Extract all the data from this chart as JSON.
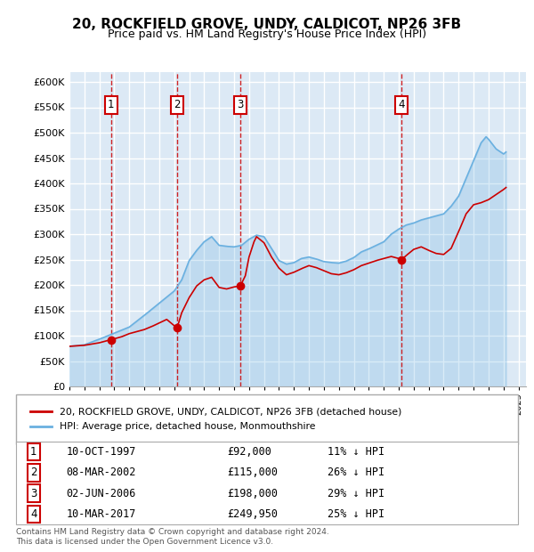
{
  "title": "20, ROCKFIELD GROVE, UNDY, CALDICOT, NP26 3FB",
  "subtitle": "Price paid vs. HM Land Registry's House Price Index (HPI)",
  "ylim": [
    0,
    620000
  ],
  "yticks": [
    0,
    50000,
    100000,
    150000,
    200000,
    250000,
    300000,
    350000,
    400000,
    450000,
    500000,
    550000,
    600000
  ],
  "xlim_start": 1995.0,
  "xlim_end": 2025.5,
  "bg_color": "#dce9f5",
  "grid_color": "#ffffff",
  "hpi_color": "#6ab0e0",
  "price_color": "#cc0000",
  "sales": [
    {
      "num": 1,
      "date": "10-OCT-1997",
      "price": 92000,
      "year": 1997.78,
      "pct": "11% ↓ HPI"
    },
    {
      "num": 2,
      "date": "08-MAR-2002",
      "price": 115000,
      "year": 2002.19,
      "pct": "26% ↓ HPI"
    },
    {
      "num": 3,
      "date": "02-JUN-2006",
      "price": 198000,
      "year": 2006.42,
      "pct": "29% ↓ HPI"
    },
    {
      "num": 4,
      "date": "10-MAR-2017",
      "price": 249950,
      "year": 2017.19,
      "pct": "25% ↓ HPI"
    }
  ],
  "legend_label_price": "20, ROCKFIELD GROVE, UNDY, CALDICOT, NP26 3FB (detached house)",
  "legend_label_hpi": "HPI: Average price, detached house, Monmouthshire",
  "footer": "Contains HM Land Registry data © Crown copyright and database right 2024.\nThis data is licensed under the Open Government Licence v3.0."
}
